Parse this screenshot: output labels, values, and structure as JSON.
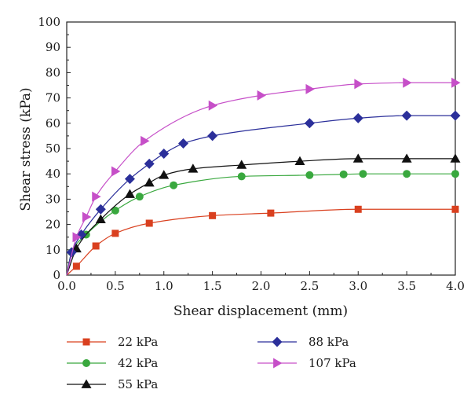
{
  "chart_data": {
    "type": "line",
    "title": "",
    "xlabel": "Shear displacement (mm)",
    "ylabel": "Shear stress (kPa)",
    "xlim": [
      0.0,
      4.0
    ],
    "ylim": [
      0,
      100
    ],
    "x_ticks": [
      "0.0",
      "0.5",
      "1.0",
      "1.5",
      "2.0",
      "2.5",
      "3.0",
      "3.5",
      "4.0"
    ],
    "y_ticks": [
      "0",
      "10",
      "20",
      "30",
      "40",
      "50",
      "60",
      "70",
      "80",
      "90",
      "100"
    ],
    "grid": false,
    "legend_position": "bottom",
    "series": [
      {
        "name": "22 kPa",
        "color": "#d9401f",
        "marker": "square",
        "x": [
          0.0,
          0.1,
          0.3,
          0.5,
          0.85,
          1.5,
          2.1,
          3.0,
          4.0
        ],
        "y": [
          0,
          3.5,
          11.5,
          16.5,
          20.5,
          23.5,
          24.5,
          26,
          26
        ]
      },
      {
        "name": "42 kPa",
        "color": "#39a83e",
        "marker": "circle",
        "x": [
          0.0,
          0.05,
          0.2,
          0.5,
          0.75,
          1.1,
          1.8,
          2.5,
          2.85,
          3.05,
          3.5,
          4.0
        ],
        "y": [
          0,
          9,
          16,
          25.5,
          31,
          35.5,
          39,
          39.5,
          39.8,
          40,
          40,
          40
        ]
      },
      {
        "name": "55 kPa",
        "color": "#111111",
        "marker": "triangle-up",
        "x": [
          0.0,
          0.1,
          0.35,
          0.65,
          0.85,
          1.0,
          1.3,
          1.8,
          2.4,
          3.0,
          3.5,
          4.0
        ],
        "y": [
          0,
          10.5,
          22,
          32,
          36.5,
          39.5,
          42,
          43.5,
          45,
          46,
          46,
          46
        ]
      },
      {
        "name": "88 kPa",
        "color": "#2b2f9a",
        "marker": "diamond",
        "x": [
          0.0,
          0.05,
          0.15,
          0.35,
          0.65,
          0.85,
          1.0,
          1.2,
          1.5,
          2.5,
          3.0,
          3.5,
          4.0
        ],
        "y": [
          0,
          9,
          16,
          26,
          38,
          44,
          48,
          52,
          55,
          60,
          62,
          63,
          63
        ]
      },
      {
        "name": "107 kPa",
        "color": "#c64fc8",
        "marker": "triangle-right",
        "x": [
          0.0,
          0.1,
          0.2,
          0.3,
          0.5,
          0.8,
          1.5,
          2.0,
          2.5,
          3.0,
          3.5,
          4.0
        ],
        "y": [
          0,
          15,
          23,
          31,
          41,
          53,
          67,
          71,
          73.5,
          75.5,
          76,
          76
        ]
      }
    ],
    "colors": {
      "line": "#2b2f9a",
      "axis": "#222222"
    }
  }
}
